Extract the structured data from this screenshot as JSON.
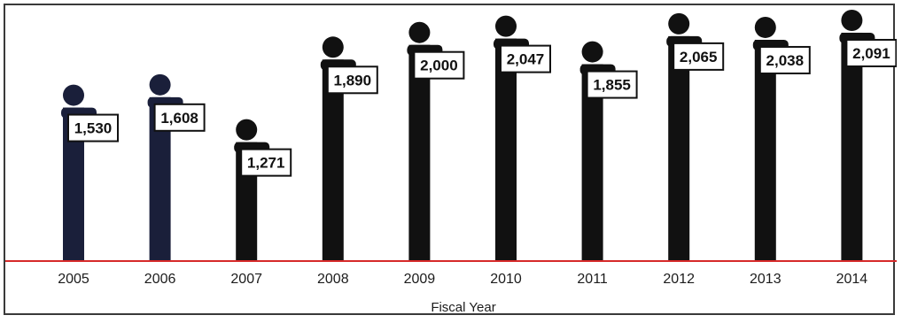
{
  "chart_data": {
    "type": "bar",
    "title": "",
    "xlabel": "Fiscal Year",
    "ylabel": "",
    "categories": [
      "2005",
      "2006",
      "2007",
      "2008",
      "2009",
      "2010",
      "2011",
      "2012",
      "2013",
      "2014"
    ],
    "values": [
      1530,
      1608,
      1271,
      1890,
      2000,
      2047,
      1855,
      2065,
      2038,
      2091
    ],
    "value_labels": [
      "1,530",
      "1,608",
      "1,271",
      "1,890",
      "2,000",
      "2,047",
      "1,855",
      "2,065",
      "2,038",
      "2,091"
    ],
    "grid": false,
    "legend": "none",
    "colors": {
      "bars_early": "#1a1f3a",
      "bars": "#111111",
      "baseline": "#d62a2a",
      "label_border": "#111111",
      "label_fill": "#ffffff"
    }
  }
}
